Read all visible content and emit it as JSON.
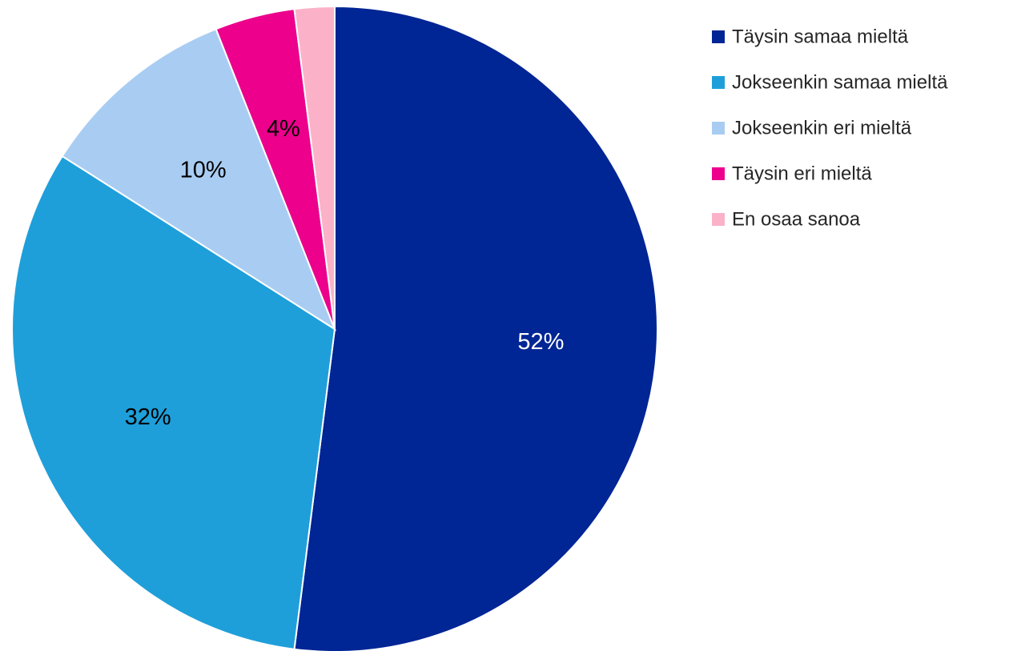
{
  "chart_data": {
    "type": "pie",
    "title": "",
    "legend_position": "right",
    "categories": [
      "Täysin samaa mieltä",
      "Jokseenkin samaa mieltä",
      "Jokseenkin eri mieltä",
      "Täysin eri mieltä",
      "En osaa sanoa"
    ],
    "values": [
      52,
      32,
      10,
      4,
      2
    ],
    "data_labels": [
      "52%",
      "32%",
      "10%",
      "4%",
      ""
    ],
    "colors": [
      "#002594",
      "#1e9fda",
      "#a9cdf2",
      "#ec008c",
      "#fbb2c8"
    ],
    "label_colors": [
      "#ffffff",
      "#000000",
      "#000000",
      "#000000",
      "#000000"
    ]
  }
}
